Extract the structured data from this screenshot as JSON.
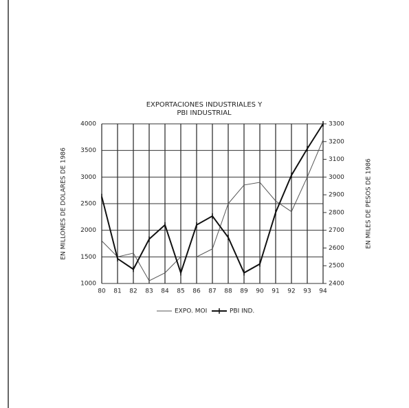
{
  "chart_data": {
    "type": "line",
    "title": "EXPORTACIONES INDUSTRIALES Y",
    "subtitle": "PBI INDUSTRIAL",
    "y_label": "EN MILLONES DE DOLARES DE 1986",
    "y2_label": "EN MILES DE PESOS DE 1986",
    "categories": [
      "80",
      "81",
      "82",
      "83",
      "84",
      "85",
      "86",
      "87",
      "88",
      "89",
      "90",
      "91",
      "92",
      "93",
      "94"
    ],
    "series": [
      {
        "name": "EXPO. MOI",
        "color": "#555555",
        "values": [
          1800,
          1500,
          1570,
          1050,
          1200,
          1500,
          1500,
          1650,
          2500,
          2850,
          2900,
          2550,
          2350,
          3000,
          3700
        ]
      },
      {
        "name": "PBI IND.",
        "color": "#111111",
        "axis": "y2",
        "values": [
          2890,
          2540,
          2480,
          2650,
          2730,
          2460,
          2730,
          2780,
          2660,
          2460,
          2510,
          2800,
          3010,
          3160,
          3300
        ]
      }
    ],
    "ylim": [
      1000,
      4000
    ],
    "yticks": [
      1000,
      1500,
      2000,
      2500,
      3000,
      3500,
      4000
    ],
    "y2lim": [
      2400,
      3300
    ],
    "y2ticks": [
      2400,
      2500,
      2600,
      2700,
      2800,
      2900,
      3000,
      3100,
      3200,
      3300
    ],
    "grid": true
  }
}
